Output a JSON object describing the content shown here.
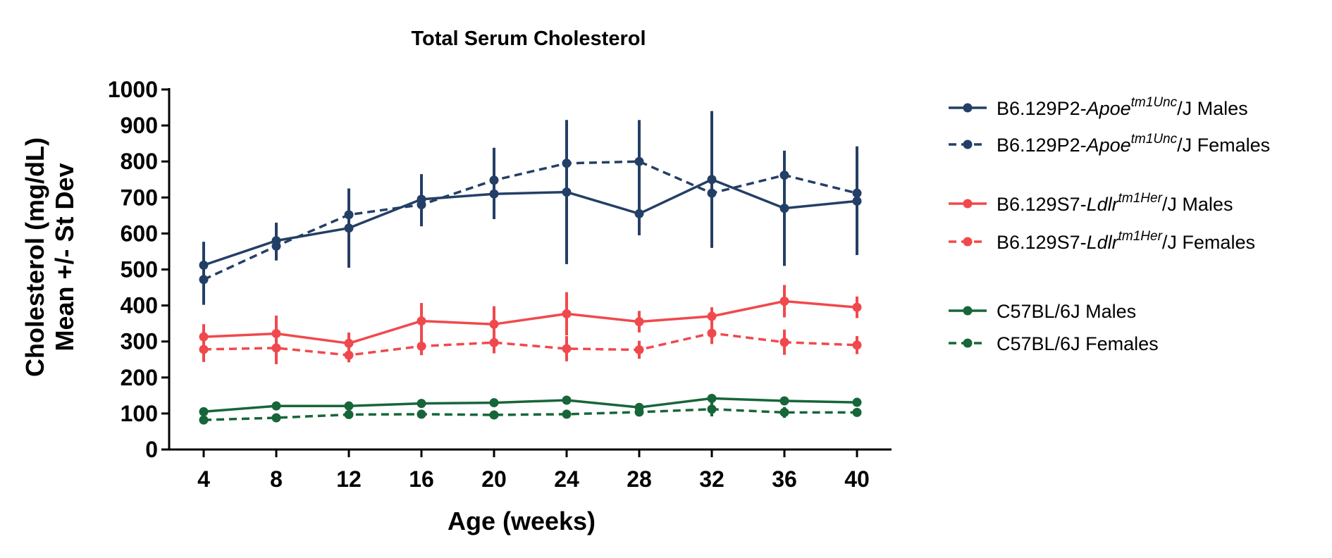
{
  "chart_data": {
    "type": "line",
    "title": "Total Serum Cholesterol",
    "xlabel": "Age (weeks)",
    "ylabel_lines": [
      "Cholesterol (mg/dL)",
      "Mean +/- St Dev"
    ],
    "x": [
      4,
      8,
      12,
      16,
      20,
      24,
      28,
      32,
      36,
      40
    ],
    "xticks": [
      "4",
      "8",
      "12",
      "16",
      "20",
      "24",
      "28",
      "32",
      "36",
      "40"
    ],
    "ylim": [
      0,
      1000
    ],
    "yticks": [
      "0",
      "100",
      "200",
      "300",
      "400",
      "500",
      "600",
      "700",
      "800",
      "900",
      "1000"
    ],
    "grid": false,
    "legend_position": "right",
    "series": [
      {
        "legend_prefix": "B6.129P2-",
        "legend_gene": "Apoe",
        "legend_allele": "tm1Unc",
        "legend_suffix": "/J Males",
        "color": "#243f66",
        "dashed": false,
        "values": [
          512,
          580,
          615,
          695,
          710,
          715,
          655,
          750,
          670,
          690
        ],
        "err": [
          65,
          50,
          110,
          70,
          70,
          200,
          60,
          190,
          160,
          150
        ]
      },
      {
        "legend_prefix": "B6.129P2-",
        "legend_gene": "Apoe",
        "legend_allele": "tm1Unc",
        "legend_suffix": "/J Females",
        "color": "#243f66",
        "dashed": true,
        "values": [
          472,
          565,
          652,
          680,
          748,
          795,
          800,
          712,
          762,
          712
        ],
        "err": [
          70,
          40,
          60,
          60,
          90,
          120,
          115,
          70,
          65,
          130
        ]
      },
      {
        "legend_prefix": "B6.129S7-",
        "legend_gene": "Ldlr",
        "legend_allele": "tm1Her",
        "legend_suffix": "/J Males",
        "color": "#f0494d",
        "dashed": false,
        "values": [
          313,
          322,
          295,
          357,
          348,
          377,
          355,
          370,
          412,
          395
        ],
        "err": [
          35,
          50,
          30,
          50,
          50,
          60,
          30,
          25,
          45,
          30
        ]
      },
      {
        "legend_prefix": "B6.129S7-",
        "legend_gene": "Ldlr",
        "legend_allele": "tm1Her",
        "legend_suffix": "/J Females",
        "color": "#f0494d",
        "dashed": true,
        "values": [
          278,
          282,
          262,
          287,
          297,
          280,
          277,
          323,
          298,
          290
        ],
        "err": [
          35,
          45,
          20,
          25,
          30,
          35,
          25,
          30,
          35,
          25
        ]
      },
      {
        "legend_prefix": "C57BL/6J Males",
        "legend_gene": "",
        "legend_allele": "",
        "legend_suffix": "",
        "color": "#17663a",
        "dashed": false,
        "values": [
          105,
          121,
          121,
          128,
          130,
          137,
          117,
          142,
          135,
          131
        ],
        "err": [
          8,
          8,
          8,
          8,
          8,
          12,
          10,
          8,
          10,
          8
        ]
      },
      {
        "legend_prefix": "C57BL/6J Females",
        "legend_gene": "",
        "legend_allele": "",
        "legend_suffix": "",
        "color": "#17663a",
        "dashed": true,
        "values": [
          82,
          88,
          97,
          98,
          96,
          98,
          104,
          112,
          103,
          103
        ],
        "err": [
          8,
          8,
          8,
          8,
          8,
          8,
          10,
          20,
          15,
          10
        ]
      }
    ]
  }
}
